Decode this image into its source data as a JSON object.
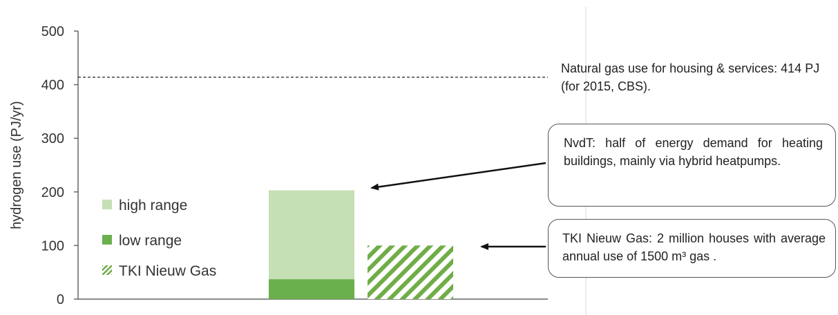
{
  "chart_data": {
    "type": "bar",
    "ylabel": "hydrogen use (PJ/yr)",
    "ylim": [
      0,
      500
    ],
    "yticks": [
      0,
      100,
      200,
      300,
      400,
      500
    ],
    "grid": false,
    "legend_position": "left-inside",
    "series": [
      {
        "name": "low range",
        "color": "#6ab04c",
        "values": [
          37
        ]
      },
      {
        "name": "high range",
        "color": "#c5e0b4",
        "values": [
          203
        ]
      },
      {
        "name": "TKI Nieuw Gas",
        "color": "#70ad47",
        "pattern": "hatched",
        "values": [
          100
        ]
      }
    ],
    "reference_line": {
      "value": 414,
      "style": "dashed"
    },
    "annotations": [
      {
        "id": "natural-gas",
        "text": "Natural gas use for housing & services: 414 PJ (for 2015, CBS)."
      },
      {
        "id": "nvdt",
        "text": "NvdT: half of energy demand for heating buildings, mainly via hybrid heatpumps."
      },
      {
        "id": "tki",
        "text": "TKI Nieuw Gas: 2 million houses with average annual use of 1500 m³ gas ."
      }
    ]
  },
  "legend": {
    "high": "high range",
    "low": "low range",
    "tki": "TKI Nieuw Gas"
  }
}
